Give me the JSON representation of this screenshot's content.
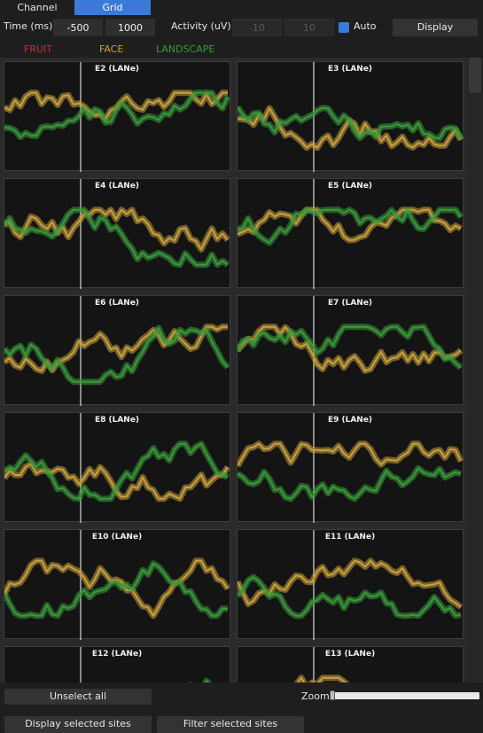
{
  "tabs": [
    {
      "label": "Channel",
      "active": false
    },
    {
      "label": "Grid",
      "active": true
    }
  ],
  "controls": {
    "time_label": "Time (ms)",
    "time_start": "-500",
    "time_end": "1000",
    "activity_label": "Activity (uV)",
    "activity_min": "-10",
    "activity_max": "10",
    "auto_label": "Auto",
    "auto_checked": true,
    "display_label": "Display"
  },
  "legend": [
    {
      "name": "FRUIT",
      "color": "#c8303a"
    },
    {
      "name": "FACE",
      "color": "#c9a13e"
    },
    {
      "name": "LANDSCAPE",
      "color": "#3a9a3a"
    }
  ],
  "panels": [
    {
      "title": "E2 (LANe)"
    },
    {
      "title": "E3 (LANe)"
    },
    {
      "title": "E4 (LANe)"
    },
    {
      "title": "E5 (LANe)"
    },
    {
      "title": "E6 (LANe)"
    },
    {
      "title": "E7 (LANe)"
    },
    {
      "title": "E8 (LANe)"
    },
    {
      "title": "E9 (LANe)"
    },
    {
      "title": "E10 (LANe)"
    },
    {
      "title": "E11 (LANe)"
    },
    {
      "title": "E12 (LANe)"
    },
    {
      "title": "E13 (LANe)"
    }
  ],
  "bottom": {
    "unselect_all": "Unselect all",
    "zoom_label": "Zoom",
    "zoom_value": 0,
    "display_selected": "Display selected sites",
    "filter_selected": "Filter selected sites"
  }
}
